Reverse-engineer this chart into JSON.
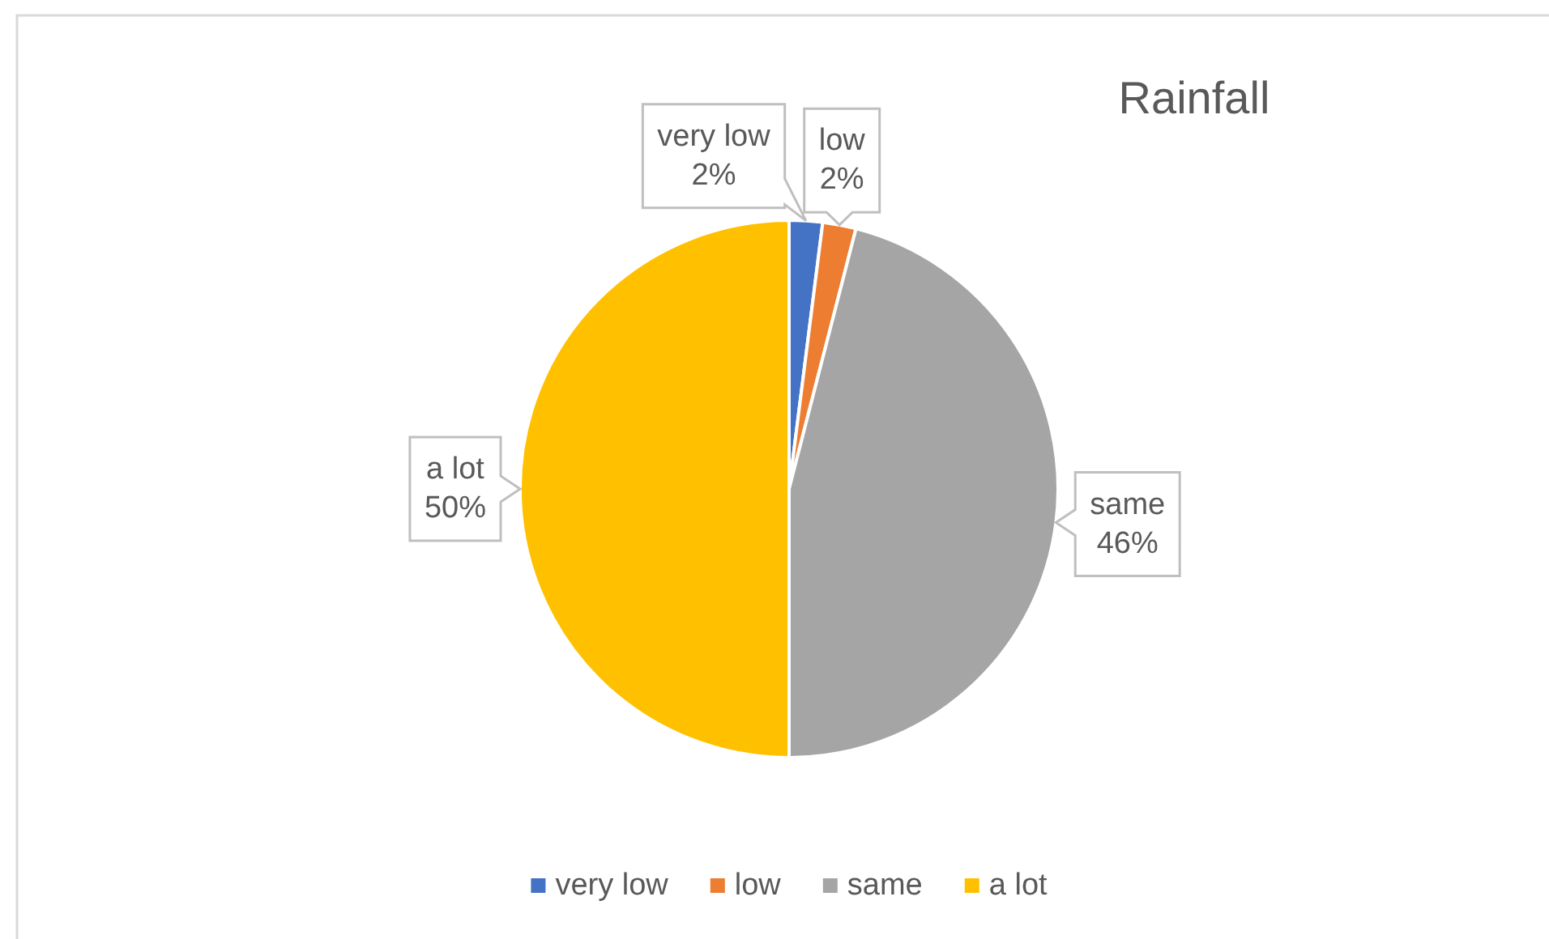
{
  "chart_data": {
    "type": "pie",
    "title": "Rainfall",
    "categories": [
      "very low",
      "low",
      "same",
      "a lot"
    ],
    "values": [
      2,
      2,
      46,
      50
    ],
    "colors": [
      "#4472c4",
      "#ed7d31",
      "#a5a5a5",
      "#ffc000"
    ],
    "value_labels": [
      "2%",
      "2%",
      "46%",
      "50%"
    ],
    "legend": "bottom"
  }
}
